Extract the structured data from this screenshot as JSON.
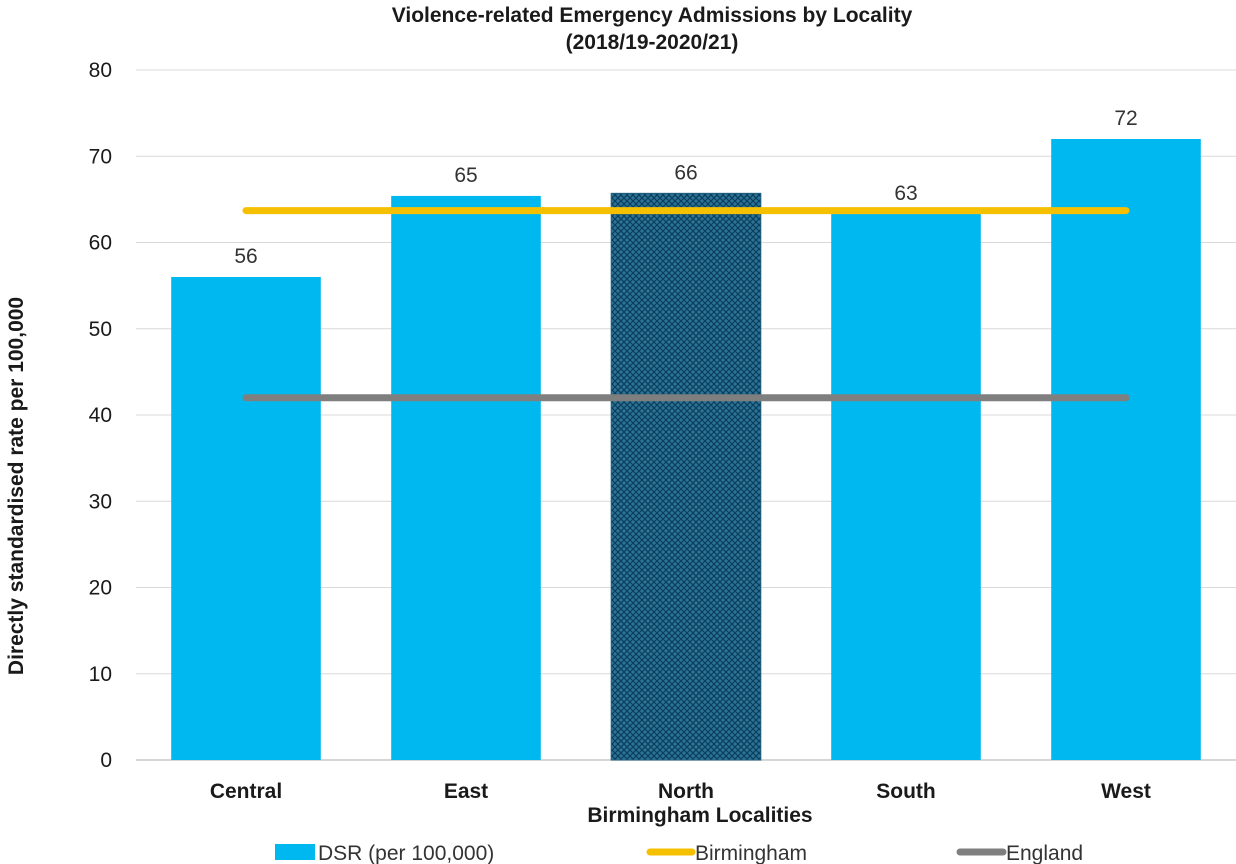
{
  "chart_data": {
    "type": "bar",
    "title": "Violence-related Emergency Admissions by Locality",
    "subtitle": "(2018/19-2020/21)",
    "xlabel": "Birmingham Localities",
    "ylabel": "Directly standardised rate per 100,000",
    "categories": [
      "Central",
      "East",
      "North",
      "South",
      "West"
    ],
    "series": [
      {
        "name": "DSR (per 100,000)",
        "values": [
          56,
          65.4,
          65.7,
          63.3,
          72
        ],
        "labels": [
          "56",
          "65",
          "66",
          "63",
          "72"
        ],
        "color": "#00b8f0",
        "highlight_category": "North",
        "highlight_color": "#1f5f7f"
      }
    ],
    "reference_lines": [
      {
        "name": "Birmingham",
        "value": 63.7,
        "color": "#f5c000"
      },
      {
        "name": "England",
        "value": 42,
        "color": "#7f7f7f"
      }
    ],
    "ylim": [
      0,
      80
    ],
    "yticks": [
      0,
      10,
      20,
      30,
      40,
      50,
      60,
      70,
      80
    ],
    "grid": true,
    "legend_position": "bottom"
  }
}
